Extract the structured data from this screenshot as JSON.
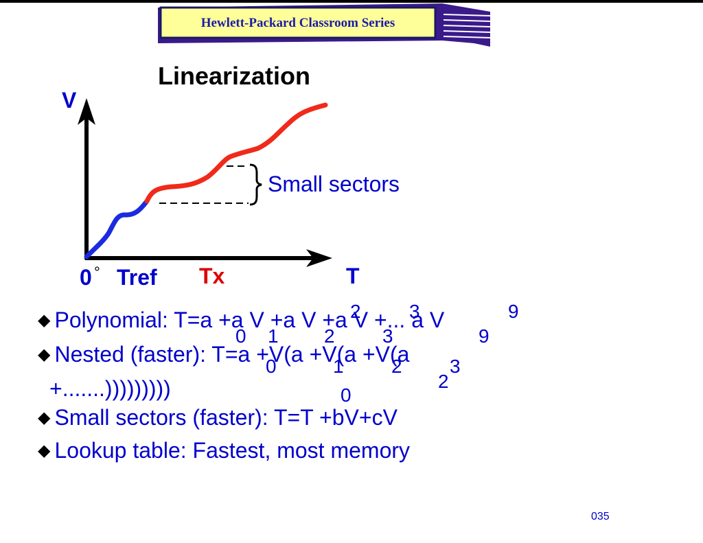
{
  "banner": {
    "text": "Hewlett-Packard Classroom Series"
  },
  "slide": {
    "title": "Linearization",
    "page_number": "035"
  },
  "diagram": {
    "v_axis_label": "V",
    "origin_label": "0",
    "degree_symbol": "°",
    "tref_label": "Tref",
    "tx_label": "Tx",
    "t_axis_label": "T",
    "sectors_label": "Small sectors",
    "colors": {
      "axis": "#000000",
      "low_curve": "#1a2be0",
      "high_curve": "#f02a1a",
      "label_blue": "#0000cc",
      "tx_red": "#dd0000"
    }
  },
  "bullets": [
    {
      "text": "Polynomial: T=a +a V +a V +a V +... a V"
    },
    {
      "text": "Nested (faster): T=a +V(a +V(a +V(a"
    },
    {
      "text": "+.......)))))))))"
    },
    {
      "text": "Small sectors (faster): T=T +bV+cV"
    },
    {
      "text": "Lookup table:  Fastest, most memory"
    }
  ],
  "overlay_fragments": {
    "p1_sup2": "2",
    "p1_sup3": "3",
    "p1_sup9": "9",
    "p1_sub0": "0",
    "p1_sub1": "1",
    "p1_sub2": "2",
    "p1_sub3": "3",
    "p1_sub9": "9",
    "n_sub0": "0",
    "n_sub1": "1",
    "n_sub2": "2",
    "n_sub3": "3",
    "n_sub2b": "2",
    "n_sub0b": "0"
  }
}
